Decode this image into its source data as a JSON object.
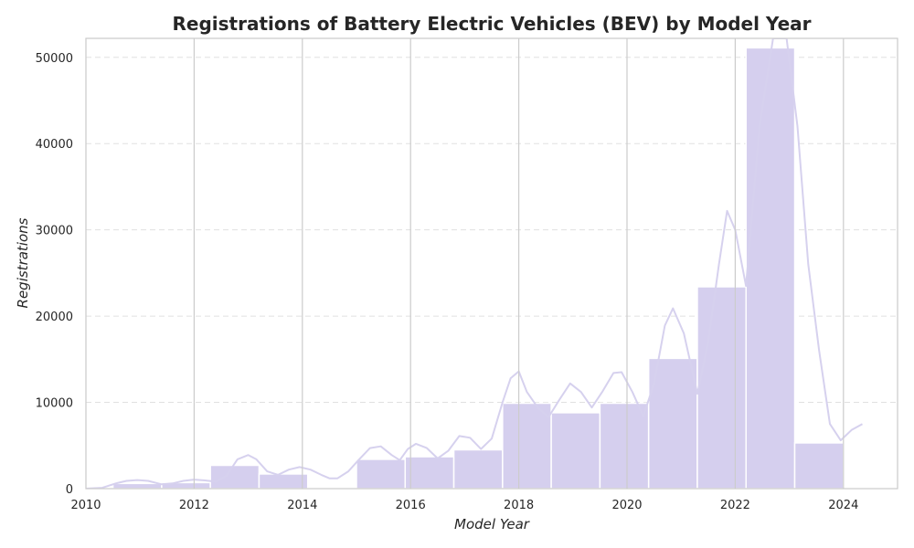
{
  "chart_data": {
    "type": "bar",
    "title": "Registrations of Battery Electric Vehicles (BEV) by Model Year",
    "xlabel": "Model Year",
    "ylabel": "Registrations",
    "xlim": [
      2010,
      2025
    ],
    "ylim": [
      0,
      52200
    ],
    "x_ticks": [
      "2010",
      "2012",
      "2014",
      "2016",
      "2018",
      "2020",
      "2022",
      "2024"
    ],
    "y_ticks": [
      "0",
      "10000",
      "20000",
      "30000",
      "40000",
      "50000"
    ],
    "grid": {
      "x": true,
      "y": true,
      "y_dashed": true
    },
    "legend": "none",
    "colors": {
      "bar": "#d5cfee",
      "bar_edge": "#ffffff",
      "line": "#d6d1ee",
      "grid": "#cccccc",
      "spine": "#cccccc"
    },
    "bars": [
      {
        "x0": 2010.5,
        "x1": 2011.4,
        "value": 600
      },
      {
        "x0": 2011.4,
        "x1": 2012.3,
        "value": 700
      },
      {
        "x0": 2012.3,
        "x1": 2013.2,
        "value": 2700
      },
      {
        "x0": 2013.2,
        "x1": 2014.1,
        "value": 1700
      },
      {
        "x0": 2015.0,
        "x1": 2015.9,
        "value": 3400
      },
      {
        "x0": 2015.9,
        "x1": 2016.8,
        "value": 3700
      },
      {
        "x0": 2016.8,
        "x1": 2017.7,
        "value": 4500
      },
      {
        "x0": 2017.7,
        "x1": 2018.6,
        "value": 9900
      },
      {
        "x0": 2018.6,
        "x1": 2019.5,
        "value": 8800
      },
      {
        "x0": 2019.5,
        "x1": 2020.4,
        "value": 9900
      },
      {
        "x0": 2020.4,
        "x1": 2021.3,
        "value": 15100
      },
      {
        "x0": 2021.3,
        "x1": 2022.2,
        "value": 23400
      },
      {
        "x0": 2022.2,
        "x1": 2023.1,
        "value": 51100
      },
      {
        "x0": 2023.1,
        "x1": 2024.0,
        "value": 5300
      }
    ],
    "density_line": [
      [
        2010.0,
        0
      ],
      [
        2010.3,
        100
      ],
      [
        2010.55,
        600
      ],
      [
        2010.75,
        900
      ],
      [
        2010.95,
        1000
      ],
      [
        2011.15,
        900
      ],
      [
        2011.4,
        500
      ],
      [
        2011.6,
        600
      ],
      [
        2011.8,
        900
      ],
      [
        2012.0,
        1050
      ],
      [
        2012.2,
        950
      ],
      [
        2012.4,
        800
      ],
      [
        2012.6,
        1500
      ],
      [
        2012.8,
        3400
      ],
      [
        2013.0,
        3900
      ],
      [
        2013.15,
        3400
      ],
      [
        2013.35,
        2000
      ],
      [
        2013.55,
        1600
      ],
      [
        2013.75,
        2200
      ],
      [
        2013.95,
        2500
      ],
      [
        2014.15,
        2200
      ],
      [
        2014.35,
        1600
      ],
      [
        2014.5,
        1200
      ],
      [
        2014.65,
        1200
      ],
      [
        2014.85,
        2000
      ],
      [
        2015.05,
        3400
      ],
      [
        2015.25,
        4700
      ],
      [
        2015.45,
        4900
      ],
      [
        2015.65,
        3900
      ],
      [
        2015.8,
        3300
      ],
      [
        2015.95,
        4600
      ],
      [
        2016.1,
        5200
      ],
      [
        2016.3,
        4700
      ],
      [
        2016.5,
        3500
      ],
      [
        2016.7,
        4400
      ],
      [
        2016.9,
        6100
      ],
      [
        2017.1,
        5900
      ],
      [
        2017.3,
        4600
      ],
      [
        2017.5,
        5800
      ],
      [
        2017.7,
        10000
      ],
      [
        2017.85,
        12800
      ],
      [
        2018.0,
        13600
      ],
      [
        2018.15,
        11200
      ],
      [
        2018.35,
        9400
      ],
      [
        2018.55,
        8300
      ],
      [
        2018.75,
        10300
      ],
      [
        2018.95,
        12200
      ],
      [
        2019.15,
        11200
      ],
      [
        2019.35,
        9400
      ],
      [
        2019.55,
        11300
      ],
      [
        2019.75,
        13400
      ],
      [
        2019.9,
        13500
      ],
      [
        2020.1,
        11200
      ],
      [
        2020.3,
        8400
      ],
      [
        2020.5,
        12200
      ],
      [
        2020.7,
        18900
      ],
      [
        2020.85,
        20900
      ],
      [
        2021.05,
        18000
      ],
      [
        2021.3,
        11000
      ],
      [
        2021.5,
        17000
      ],
      [
        2021.7,
        26000
      ],
      [
        2021.85,
        32200
      ],
      [
        2022.0,
        30000
      ],
      [
        2022.2,
        23500
      ],
      [
        2022.45,
        42000
      ],
      [
        2022.7,
        52200
      ],
      [
        2022.95,
        52200
      ],
      [
        2023.15,
        42000
      ],
      [
        2023.35,
        26000
      ],
      [
        2023.55,
        16000
      ],
      [
        2023.75,
        7500
      ],
      [
        2023.95,
        5600
      ],
      [
        2024.15,
        6800
      ],
      [
        2024.35,
        7500
      ]
    ]
  }
}
